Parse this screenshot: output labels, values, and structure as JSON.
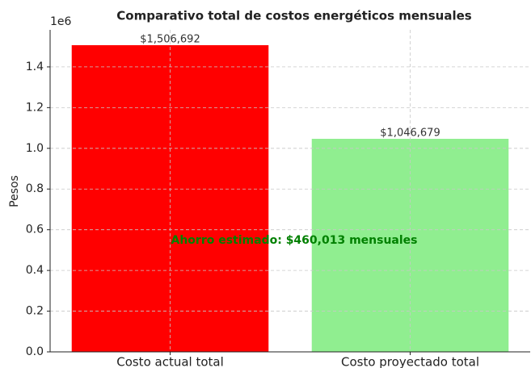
{
  "chart_data": {
    "type": "bar",
    "title": "Comparativo total de costos energéticos mensuales",
    "y_label": "Pesos",
    "y_offset_label": "1e6",
    "categories": [
      "Costo actual total",
      "Costo proyectado total"
    ],
    "values": [
      1506692,
      1046679
    ],
    "value_labels": [
      "$1,506,692",
      "$1,046,679"
    ],
    "colors": [
      "#ff0000",
      "#90ee90"
    ],
    "annotation": {
      "text": "Ahorro estimado: $460,013 mensuales",
      "color": "#008000"
    },
    "ylim": [
      0,
      1582027
    ],
    "yticks": [
      {
        "value": 0,
        "label": "0.0"
      },
      {
        "value": 200000,
        "label": "0.2"
      },
      {
        "value": 400000,
        "label": "0.4"
      },
      {
        "value": 600000,
        "label": "0.6"
      },
      {
        "value": 800000,
        "label": "0.8"
      },
      {
        "value": 1000000,
        "label": "1.0"
      },
      {
        "value": 1200000,
        "label": "1.2"
      },
      {
        "value": 1400000,
        "label": "1.4"
      }
    ],
    "grid": true
  }
}
